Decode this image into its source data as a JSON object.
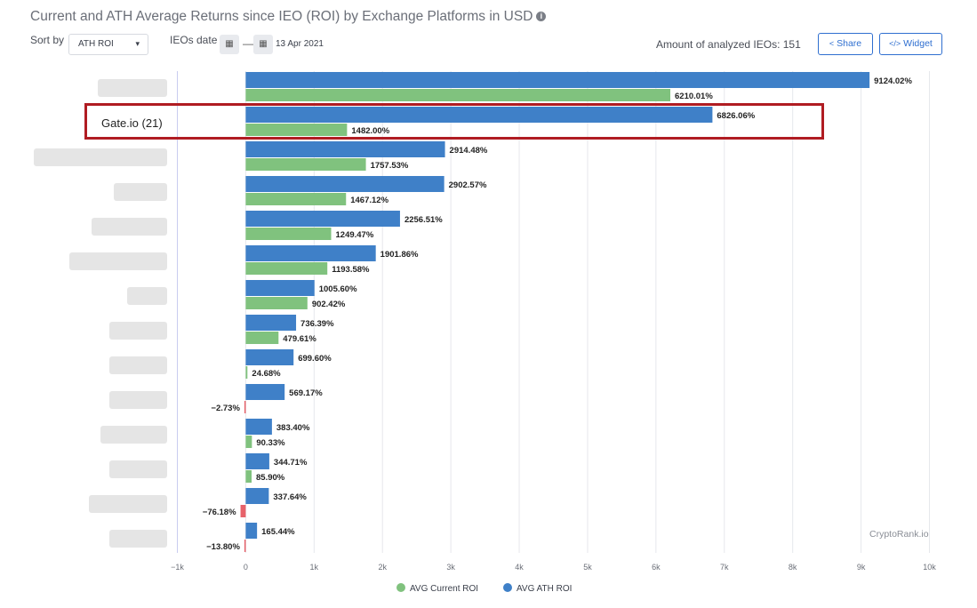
{
  "header": {
    "title": "Current and ATH Average Returns since IEO (ROI) by Exchange Platforms in USD",
    "sort_label": "Sort by",
    "sort_value": "ATH ROI",
    "ieo_date_label": "IEOs date",
    "date_separator": "—",
    "date_value": "13 Apr 2021",
    "amount_label": "Amount of analyzed IEOs: 151",
    "share_label": "Share",
    "widget_label": "Widget"
  },
  "highlight": {
    "label": "Gate.io (21)"
  },
  "watermark": "CryptoRank.io",
  "colors": {
    "ath": "#3f80c8",
    "current": "#80c27e",
    "negative": "#e7626a",
    "highlight": "#b01c22"
  },
  "chart_data": {
    "type": "bar",
    "orientation": "horizontal",
    "categories": [
      "",
      "Gate.io (21)",
      "",
      "",
      "",
      "",
      "",
      "",
      "",
      "",
      "",
      "",
      "",
      ""
    ],
    "series": [
      {
        "name": "AVG ATH ROI",
        "values": [
          9124.02,
          6826.06,
          2914.48,
          2902.57,
          2256.51,
          1901.86,
          1005.6,
          736.39,
          699.6,
          569.17,
          383.4,
          344.71,
          337.64,
          165.44
        ]
      },
      {
        "name": "AVG Current ROI",
        "values": [
          6210.01,
          1482.0,
          1757.53,
          1467.12,
          1249.47,
          1193.58,
          902.42,
          479.61,
          24.68,
          -2.73,
          90.33,
          85.9,
          -76.18,
          -13.8
        ]
      }
    ],
    "value_labels": {
      "ath": [
        "9124.02%",
        "6826.06%",
        "2914.48%",
        "2902.57%",
        "2256.51%",
        "1901.86%",
        "1005.60%",
        "736.39%",
        "699.60%",
        "569.17%",
        "383.40%",
        "344.71%",
        "337.64%",
        "165.44%"
      ],
      "current": [
        "6210.01%",
        "1482.00%",
        "1757.53%",
        "1467.12%",
        "1249.47%",
        "1193.58%",
        "902.42%",
        "479.61%",
        "24.68%",
        "−2.73%",
        "90.33%",
        "85.90%",
        "−76.18%",
        "−13.80%"
      ]
    },
    "xlim": [
      -1000,
      10000
    ],
    "xticks": [
      -1000,
      0,
      1000,
      2000,
      3000,
      4000,
      5000,
      6000,
      7000,
      8000,
      9000,
      10000
    ],
    "xtick_labels": [
      "−1k",
      "0",
      "1k",
      "2k",
      "3k",
      "4k",
      "5k",
      "6k",
      "7k",
      "8k",
      "9k",
      "10k"
    ],
    "grid": true,
    "legend": "bottom-center",
    "xlabel": "",
    "ylabel": ""
  }
}
